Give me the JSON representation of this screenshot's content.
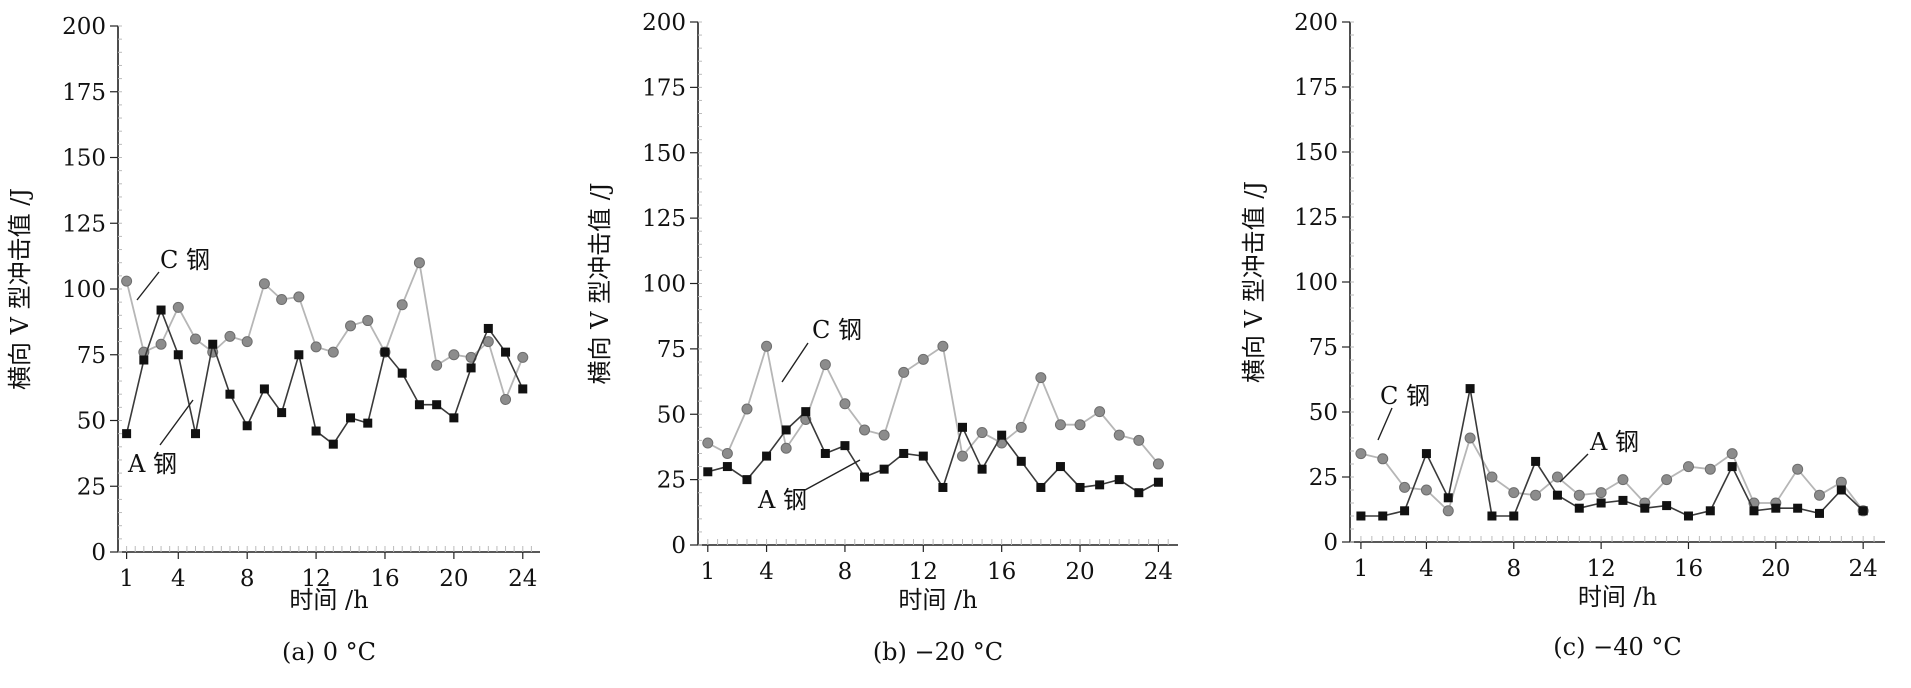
{
  "chart_data": [
    {
      "type": "line",
      "caption": "(a) 0 °C",
      "xlabel": "时间 /h",
      "ylabel": "横向 V 型冲击值 /J",
      "xlim": [
        0.5,
        25
      ],
      "ylim": [
        0,
        200
      ],
      "xticks": [
        1,
        4,
        8,
        12,
        16,
        20,
        24
      ],
      "yticks": [
        0,
        25,
        50,
        75,
        100,
        125,
        150,
        175,
        200
      ],
      "grid": false,
      "x": [
        1,
        2,
        3,
        4,
        5,
        6,
        7,
        8,
        9,
        10,
        11,
        12,
        13,
        14,
        15,
        16,
        17,
        18,
        19,
        20,
        21,
        22,
        23,
        24
      ],
      "series": [
        {
          "name": "C 钢",
          "marker": "circle",
          "values": [
            103,
            76,
            79,
            93,
            81,
            76,
            82,
            80,
            102,
            96,
            97,
            78,
            76,
            86,
            88,
            76,
            94,
            110,
            71,
            75,
            74,
            80,
            58,
            74
          ]
        },
        {
          "name": "A 钢",
          "marker": "square",
          "values": [
            45,
            73,
            92,
            75,
            45,
            79,
            60,
            48,
            62,
            53,
            75,
            46,
            41,
            51,
            49,
            76,
            68,
            56,
            56,
            51,
            70,
            85,
            76,
            62
          ]
        }
      ]
    },
    {
      "type": "line",
      "caption": "(b) −20 °C",
      "xlabel": "时间 /h",
      "ylabel": "横向 V 型冲击值 /J",
      "xlim": [
        0.5,
        25
      ],
      "ylim": [
        0,
        200
      ],
      "xticks": [
        1,
        4,
        8,
        12,
        16,
        20,
        24
      ],
      "yticks": [
        0,
        25,
        50,
        75,
        100,
        125,
        150,
        175,
        200
      ],
      "grid": false,
      "x": [
        1,
        2,
        3,
        4,
        5,
        6,
        7,
        8,
        9,
        10,
        11,
        12,
        13,
        14,
        15,
        16,
        17,
        18,
        19,
        20,
        21,
        22,
        23,
        24
      ],
      "series": [
        {
          "name": "C 钢",
          "marker": "circle",
          "values": [
            39,
            35,
            52,
            76,
            37,
            48,
            69,
            54,
            44,
            42,
            66,
            71,
            76,
            34,
            43,
            39,
            45,
            64,
            46,
            46,
            51,
            42,
            40,
            31
          ]
        },
        {
          "name": "A 钢",
          "marker": "square",
          "values": [
            28,
            30,
            25,
            34,
            44,
            51,
            35,
            38,
            26,
            29,
            35,
            34,
            22,
            45,
            29,
            42,
            32,
            22,
            30,
            22,
            23,
            25,
            20,
            24
          ]
        }
      ]
    },
    {
      "type": "line",
      "caption": "(c) −40 °C",
      "xlabel": "时间 /h",
      "ylabel": "横向 V 型冲击值 /J",
      "xlim": [
        0.5,
        25
      ],
      "ylim": [
        0,
        200
      ],
      "xticks": [
        1,
        4,
        8,
        12,
        16,
        20,
        24
      ],
      "yticks": [
        0,
        25,
        50,
        75,
        100,
        125,
        150,
        175,
        200
      ],
      "grid": false,
      "x": [
        1,
        2,
        3,
        4,
        5,
        6,
        7,
        8,
        9,
        10,
        11,
        12,
        13,
        14,
        15,
        16,
        17,
        18,
        19,
        20,
        21,
        22,
        23,
        24
      ],
      "series": [
        {
          "name": "C 钢",
          "marker": "circle",
          "values": [
            34,
            32,
            21,
            20,
            12,
            40,
            25,
            19,
            18,
            25,
            18,
            19,
            24,
            15,
            24,
            29,
            28,
            34,
            15,
            15,
            28,
            18,
            23,
            12
          ]
        },
        {
          "name": "A 钢",
          "marker": "square",
          "values": [
            10,
            10,
            12,
            34,
            17,
            59,
            10,
            10,
            31,
            18,
            13,
            15,
            16,
            13,
            14,
            10,
            12,
            29,
            12,
            13,
            13,
            11,
            20,
            12
          ]
        }
      ]
    }
  ]
}
